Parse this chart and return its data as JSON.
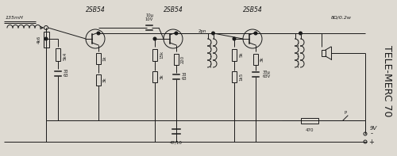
{
  "bg_color": "#dedad2",
  "line_color": "#1a1a1a",
  "title": "TELE-MERC 70",
  "transistor_labels": [
    "2SB54",
    "2SB54",
    "2SB54"
  ],
  "speaker_label": "8Ω/0.2w",
  "inductor_label": "135mH",
  "voltage_label": "9V",
  "component_labels": {
    "r1": "4k6",
    "r2": "5k4",
    "c1": "33/63",
    "r3": "1k",
    "r4": "3k",
    "cap_couple": "10μ\n10V",
    "r5": "15k",
    "r6": "3k",
    "r7": "220",
    "c2": "33/63",
    "cap_47": "47/10",
    "r8": "5k",
    "r9": "1k5",
    "r10": "3k",
    "c3": "33μ\n63V",
    "r11": "470",
    "label_2pn": "2pn"
  }
}
